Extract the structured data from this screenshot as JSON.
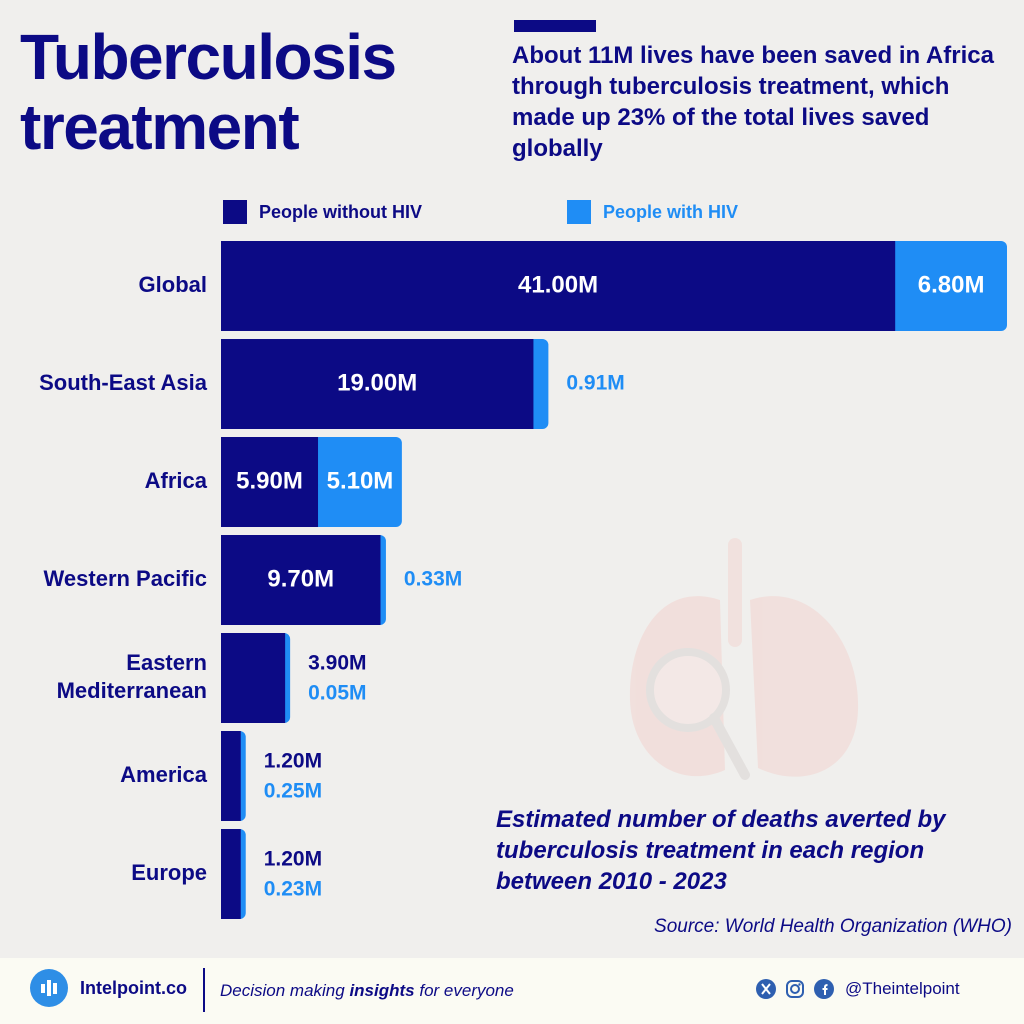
{
  "header": {
    "title": "Tuberculosis\ntreatment",
    "subtitle": "About 11M lives have been saved in Africa through tuberculosis treatment, which made up 23% of the total lives saved globally"
  },
  "colors": {
    "without_hiv": "#0c0a85",
    "with_hiv": "#1f8df5",
    "background": "#f0efed"
  },
  "chart_data": {
    "type": "bar",
    "orientation": "horizontal",
    "stacked": true,
    "categories": [
      "Global",
      "South-East Asia",
      "Africa",
      "Western Pacific",
      "Eastern\nMediterranean",
      "America",
      "Europe"
    ],
    "series": [
      {
        "name": "People without HIV",
        "values": [
          41.0,
          19.0,
          5.9,
          9.7,
          3.9,
          1.2,
          1.2
        ],
        "labels": [
          "41.00M",
          "19.00M",
          "5.90M",
          "9.70M",
          "3.90M",
          "1.20M",
          "1.20M"
        ]
      },
      {
        "name": "People with HIV",
        "values": [
          6.8,
          0.91,
          5.1,
          0.33,
          0.05,
          0.25,
          0.23
        ],
        "labels": [
          "6.80M",
          "0.91M",
          "5.10M",
          "0.33M",
          "0.05M",
          "0.25M",
          "0.23M"
        ]
      }
    ],
    "legend": {
      "position": "top"
    }
  },
  "caption": "Estimated number of deaths averted by tuberculosis treatment in each region between 2010 - 2023",
  "source": "Source: World Health Organization (WHO)",
  "footer": {
    "brand": "Intelpoint.co",
    "tagline_pre": "Decision making ",
    "tagline_bold": "insights",
    "tagline_post": " for everyone",
    "handle": "@Theintelpoint",
    "social_icons": [
      "x-icon",
      "instagram-icon",
      "facebook-icon"
    ]
  }
}
